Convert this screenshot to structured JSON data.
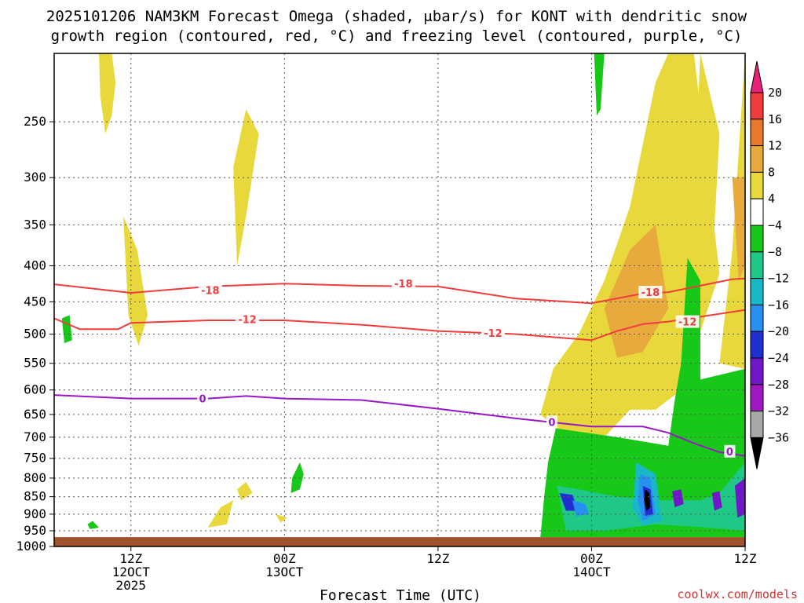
{
  "title": {
    "line1": "2025101206 NAM3KM Forecast Omega (shaded, μbar/s) for KONT with dendritic snow",
    "line2": "growth region (contoured, red, °C) and freezing level (contoured, purple, °C)"
  },
  "credit": "coolwx.com/models",
  "chart_data": {
    "type": "heatmap",
    "title": "2025101206 NAM3KM Forecast Omega (shaded, μbar/s) for KONT with dendritic snow growth region (contoured, red, °C) and freezing level (contoured, purple, °C)",
    "xlabel": "Forecast Time (UTC)",
    "ylabel": "",
    "x_unit": "forecast hour",
    "xlim": [
      0,
      54
    ],
    "y_unit": "hPa",
    "ylim": [
      1000,
      200
    ],
    "y_ticks": [
      250,
      300,
      350,
      400,
      450,
      500,
      550,
      600,
      650,
      700,
      750,
      800,
      850,
      900,
      950,
      1000
    ],
    "x_ticks": [
      {
        "hour": 6,
        "line1": "12Z",
        "line2": "12OCT",
        "line3": "2025"
      },
      {
        "hour": 18,
        "line1": "00Z",
        "line2": "13OCT",
        "line3": ""
      },
      {
        "hour": 30,
        "line1": "12Z",
        "line2": "",
        "line3": ""
      },
      {
        "hour": 42,
        "line1": "00Z",
        "line2": "14OCT",
        "line3": ""
      },
      {
        "hour": 54,
        "line1": "12Z",
        "line2": "",
        "line3": ""
      }
    ],
    "colorbar": {
      "labels": [
        "20",
        "16",
        "12",
        "8",
        "4",
        "−4",
        "−8",
        "−12",
        "−16",
        "−20",
        "−24",
        "−28",
        "−32",
        "−36"
      ],
      "colors": [
        "#e8207a",
        "#f03c3c",
        "#e8782c",
        "#e8aa3c",
        "#e8d83c",
        "#ffffff",
        "#18c818",
        "#20c888",
        "#18b8c8",
        "#2890f0",
        "#2030d0",
        "#7018c8",
        "#a018c0",
        "#a8a8a8",
        "#000000"
      ]
    },
    "contours": [
      {
        "name": "dendritic-minus18",
        "label": "-18",
        "color": "#f03c3c",
        "points": [
          [
            0,
            425
          ],
          [
            6,
            437
          ],
          [
            12,
            428
          ],
          [
            18,
            424
          ],
          [
            24,
            427
          ],
          [
            30,
            428
          ],
          [
            36,
            445
          ],
          [
            42,
            452
          ],
          [
            46,
            438
          ],
          [
            48,
            436
          ],
          [
            53,
            418
          ],
          [
            54,
            417
          ]
        ]
      },
      {
        "name": "dendritic-minus12",
        "label": "-12",
        "color": "#f03c3c",
        "points": [
          [
            0,
            475
          ],
          [
            2,
            492
          ],
          [
            5,
            492
          ],
          [
            6,
            482
          ],
          [
            12,
            478
          ],
          [
            18,
            478
          ],
          [
            24,
            485
          ],
          [
            30,
            495
          ],
          [
            36,
            500
          ],
          [
            42,
            510
          ],
          [
            44,
            495
          ],
          [
            46,
            484
          ],
          [
            48,
            480
          ],
          [
            54,
            462
          ]
        ]
      },
      {
        "name": "freezing-level-0",
        "label": "0",
        "color": "#9818c8",
        "points": [
          [
            0,
            610
          ],
          [
            6,
            617
          ],
          [
            12,
            617
          ],
          [
            15,
            612
          ],
          [
            18,
            617
          ],
          [
            24,
            620
          ],
          [
            30,
            638
          ],
          [
            36,
            658
          ],
          [
            42,
            676
          ],
          [
            46,
            676
          ],
          [
            48,
            690
          ],
          [
            50,
            714
          ],
          [
            52,
            735
          ],
          [
            54,
            744
          ]
        ]
      }
    ],
    "contour_labels": [
      {
        "text": "-18",
        "hour": 12.2,
        "hpa": 433
      },
      {
        "text": "-18",
        "hour": 27.3,
        "hpa": 424
      },
      {
        "text": "-18",
        "hour": 46.6,
        "hpa": 436
      },
      {
        "text": "-12",
        "hour": 15.1,
        "hpa": 476
      },
      {
        "text": "-12",
        "hour": 34.3,
        "hpa": 498
      },
      {
        "text": "-12",
        "hour": 49.5,
        "hpa": 480
      },
      {
        "text": "0",
        "hour": 11.6,
        "hpa": 617
      },
      {
        "text": "0",
        "hour": 38.9,
        "hpa": 666
      },
      {
        "text": "0",
        "hour": 52.8,
        "hpa": 733
      }
    ],
    "ground_level_hpa": 970,
    "omega_regions": [
      {
        "name": "rising-4to8-top-left",
        "category": "4 to 8",
        "points": [
          [
            3.5,
            200
          ],
          [
            4.5,
            200
          ],
          [
            4.8,
            220
          ],
          [
            4.5,
            245
          ],
          [
            4,
            260
          ],
          [
            3.6,
            230
          ]
        ]
      },
      {
        "name": "rising-4to8-west",
        "category": "4 to 8",
        "points": [
          [
            5.4,
            340
          ],
          [
            6.5,
            380
          ],
          [
            7.3,
            470
          ],
          [
            6.6,
            520
          ],
          [
            5.8,
            470
          ]
        ]
      },
      {
        "name": "rising-4to8-mid",
        "category": "4 to 8",
        "points": [
          [
            14,
            290
          ],
          [
            15,
            240
          ],
          [
            16,
            260
          ],
          [
            15,
            340
          ],
          [
            14.3,
            400
          ]
        ]
      },
      {
        "name": "rising-4to8-lowmid",
        "category": "4 to 8",
        "points": [
          [
            12,
            940
          ],
          [
            13,
            880
          ],
          [
            14,
            860
          ],
          [
            13.5,
            930
          ]
        ]
      },
      {
        "name": "rising-4to8-mid2",
        "category": "4 to 8",
        "points": [
          [
            14.3,
            830
          ],
          [
            15,
            810
          ],
          [
            15.5,
            840
          ],
          [
            14.6,
            860
          ]
        ]
      },
      {
        "name": "rising-4to8-mid3",
        "category": "4 to 8",
        "points": [
          [
            17.3,
            900
          ],
          [
            18.2,
            910
          ],
          [
            17.7,
            925
          ]
        ]
      },
      {
        "name": "rising-4to8-tower",
        "category": "4 to 8",
        "points": [
          [
            38,
            650
          ],
          [
            39,
            560
          ],
          [
            41,
            500
          ],
          [
            43,
            420
          ],
          [
            45,
            330
          ],
          [
            47,
            220
          ],
          [
            48,
            200
          ],
          [
            50,
            200
          ],
          [
            52,
            410
          ],
          [
            49,
            600
          ],
          [
            47,
            640
          ],
          [
            45,
            640
          ],
          [
            43,
            700
          ],
          [
            42,
            720
          ],
          [
            40,
            700
          ]
        ]
      },
      {
        "name": "rising-8to12-core",
        "category": "8 to 12",
        "points": [
          [
            43,
            460
          ],
          [
            45,
            380
          ],
          [
            47,
            350
          ],
          [
            48,
            460
          ],
          [
            46,
            530
          ],
          [
            44,
            540
          ]
        ]
      },
      {
        "name": "rising-4to8-right-edge",
        "category": "4 to 8",
        "points": [
          [
            50.5,
            200
          ],
          [
            52,
            260
          ],
          [
            51.5,
            380
          ],
          [
            50.5,
            420
          ],
          [
            50,
            320
          ]
        ]
      },
      {
        "name": "rising-4to8-far-right",
        "category": "4 to 8",
        "points": [
          [
            52,
            550
          ],
          [
            53,
            380
          ],
          [
            54,
            200
          ],
          [
            54,
            560
          ]
        ]
      },
      {
        "name": "rising-8to12-right",
        "category": "8 to 12",
        "points": [
          [
            53,
            300
          ],
          [
            54,
            300
          ],
          [
            54,
            400
          ],
          [
            53.5,
            420
          ]
        ]
      },
      {
        "name": "sinking-4-west",
        "category": "-4 to -8",
        "points": [
          [
            0.6,
            475
          ],
          [
            1.2,
            470
          ],
          [
            1.4,
            510
          ],
          [
            0.8,
            515
          ]
        ]
      },
      {
        "name": "sinking-4-westlow",
        "category": "-4 to -8",
        "points": [
          [
            2.6,
            930
          ],
          [
            3,
            920
          ],
          [
            3.5,
            940
          ],
          [
            2.8,
            945
          ]
        ]
      },
      {
        "name": "sinking-4-midlow",
        "category": "-4 to -8",
        "points": [
          [
            18.6,
            800
          ],
          [
            19.2,
            760
          ],
          [
            19.5,
            790
          ],
          [
            19.2,
            830
          ],
          [
            18.5,
            840
          ]
        ]
      },
      {
        "name": "sinking-4-top",
        "category": "-4 to -8",
        "points": [
          [
            42.2,
            200
          ],
          [
            43,
            200
          ],
          [
            42.7,
            240
          ],
          [
            42.4,
            245
          ]
        ]
      },
      {
        "name": "sinking-4-lowblob",
        "category": "-4 to -8",
        "points": [
          [
            39.2,
            680
          ],
          [
            44,
            700
          ],
          [
            48,
            720
          ],
          [
            48.5,
            620
          ],
          [
            49,
            550
          ],
          [
            49.5,
            390
          ],
          [
            50.5,
            420
          ],
          [
            50.5,
            580
          ],
          [
            54,
            560
          ],
          [
            54,
            970
          ],
          [
            38,
            970
          ],
          [
            38.3,
            850
          ],
          [
            38.6,
            760
          ]
        ]
      },
      {
        "name": "sinking-8-rings",
        "category": "-8 to -12",
        "points": [
          [
            39.3,
            820
          ],
          [
            41,
            830
          ],
          [
            44,
            850
          ],
          [
            47,
            860
          ],
          [
            50.5,
            860
          ],
          [
            52,
            840
          ],
          [
            54,
            760
          ],
          [
            54,
            950
          ],
          [
            51,
            940
          ],
          [
            47,
            930
          ],
          [
            43,
            950
          ],
          [
            40,
            950
          ]
        ]
      },
      {
        "name": "sinking-12-blue",
        "category": "-12 to -16",
        "points": [
          [
            45.5,
            760
          ],
          [
            47,
            790
          ],
          [
            47.5,
            920
          ],
          [
            46,
            935
          ],
          [
            45.2,
            880
          ]
        ]
      },
      {
        "name": "sinking-16-blue",
        "category": "-16 to -20",
        "points": [
          [
            45.8,
            790
          ],
          [
            46.6,
            800
          ],
          [
            47,
            900
          ],
          [
            46,
            920
          ],
          [
            45.6,
            860
          ]
        ]
      },
      {
        "name": "sinking-20-navy",
        "category": "-20 to -24",
        "points": [
          [
            46,
            820
          ],
          [
            46.6,
            830
          ],
          [
            46.8,
            900
          ],
          [
            46.2,
            905
          ]
        ]
      },
      {
        "name": "sinking-36-core",
        "category": "< -36",
        "points": [
          [
            46.2,
            830
          ],
          [
            46.5,
            840
          ],
          [
            46.6,
            880
          ],
          [
            46.3,
            890
          ],
          [
            46.1,
            860
          ]
        ]
      },
      {
        "name": "sinking-28-purple-1",
        "category": "-24 to -28",
        "points": [
          [
            48.3,
            835
          ],
          [
            49,
            830
          ],
          [
            49.2,
            870
          ],
          [
            48.5,
            880
          ]
        ]
      },
      {
        "name": "sinking-28-purple-2",
        "category": "-24 to -28",
        "points": [
          [
            51.4,
            840
          ],
          [
            52,
            835
          ],
          [
            52.2,
            880
          ],
          [
            51.6,
            890
          ]
        ]
      },
      {
        "name": "sinking-28-purple-3",
        "category": "-24 to -28",
        "points": [
          [
            53.2,
            820
          ],
          [
            54,
            800
          ],
          [
            54,
            900
          ],
          [
            53.4,
            910
          ]
        ]
      },
      {
        "name": "sinking-20-blue-2",
        "category": "-20 to -24",
        "points": [
          [
            39.5,
            840
          ],
          [
            40.5,
            845
          ],
          [
            41,
            890
          ],
          [
            40,
            890
          ]
        ]
      },
      {
        "name": "sinking-16-blue-3",
        "category": "-16 to -20",
        "points": [
          [
            40.5,
            860
          ],
          [
            41.5,
            870
          ],
          [
            41.8,
            900
          ],
          [
            40.8,
            905
          ]
        ]
      }
    ]
  }
}
